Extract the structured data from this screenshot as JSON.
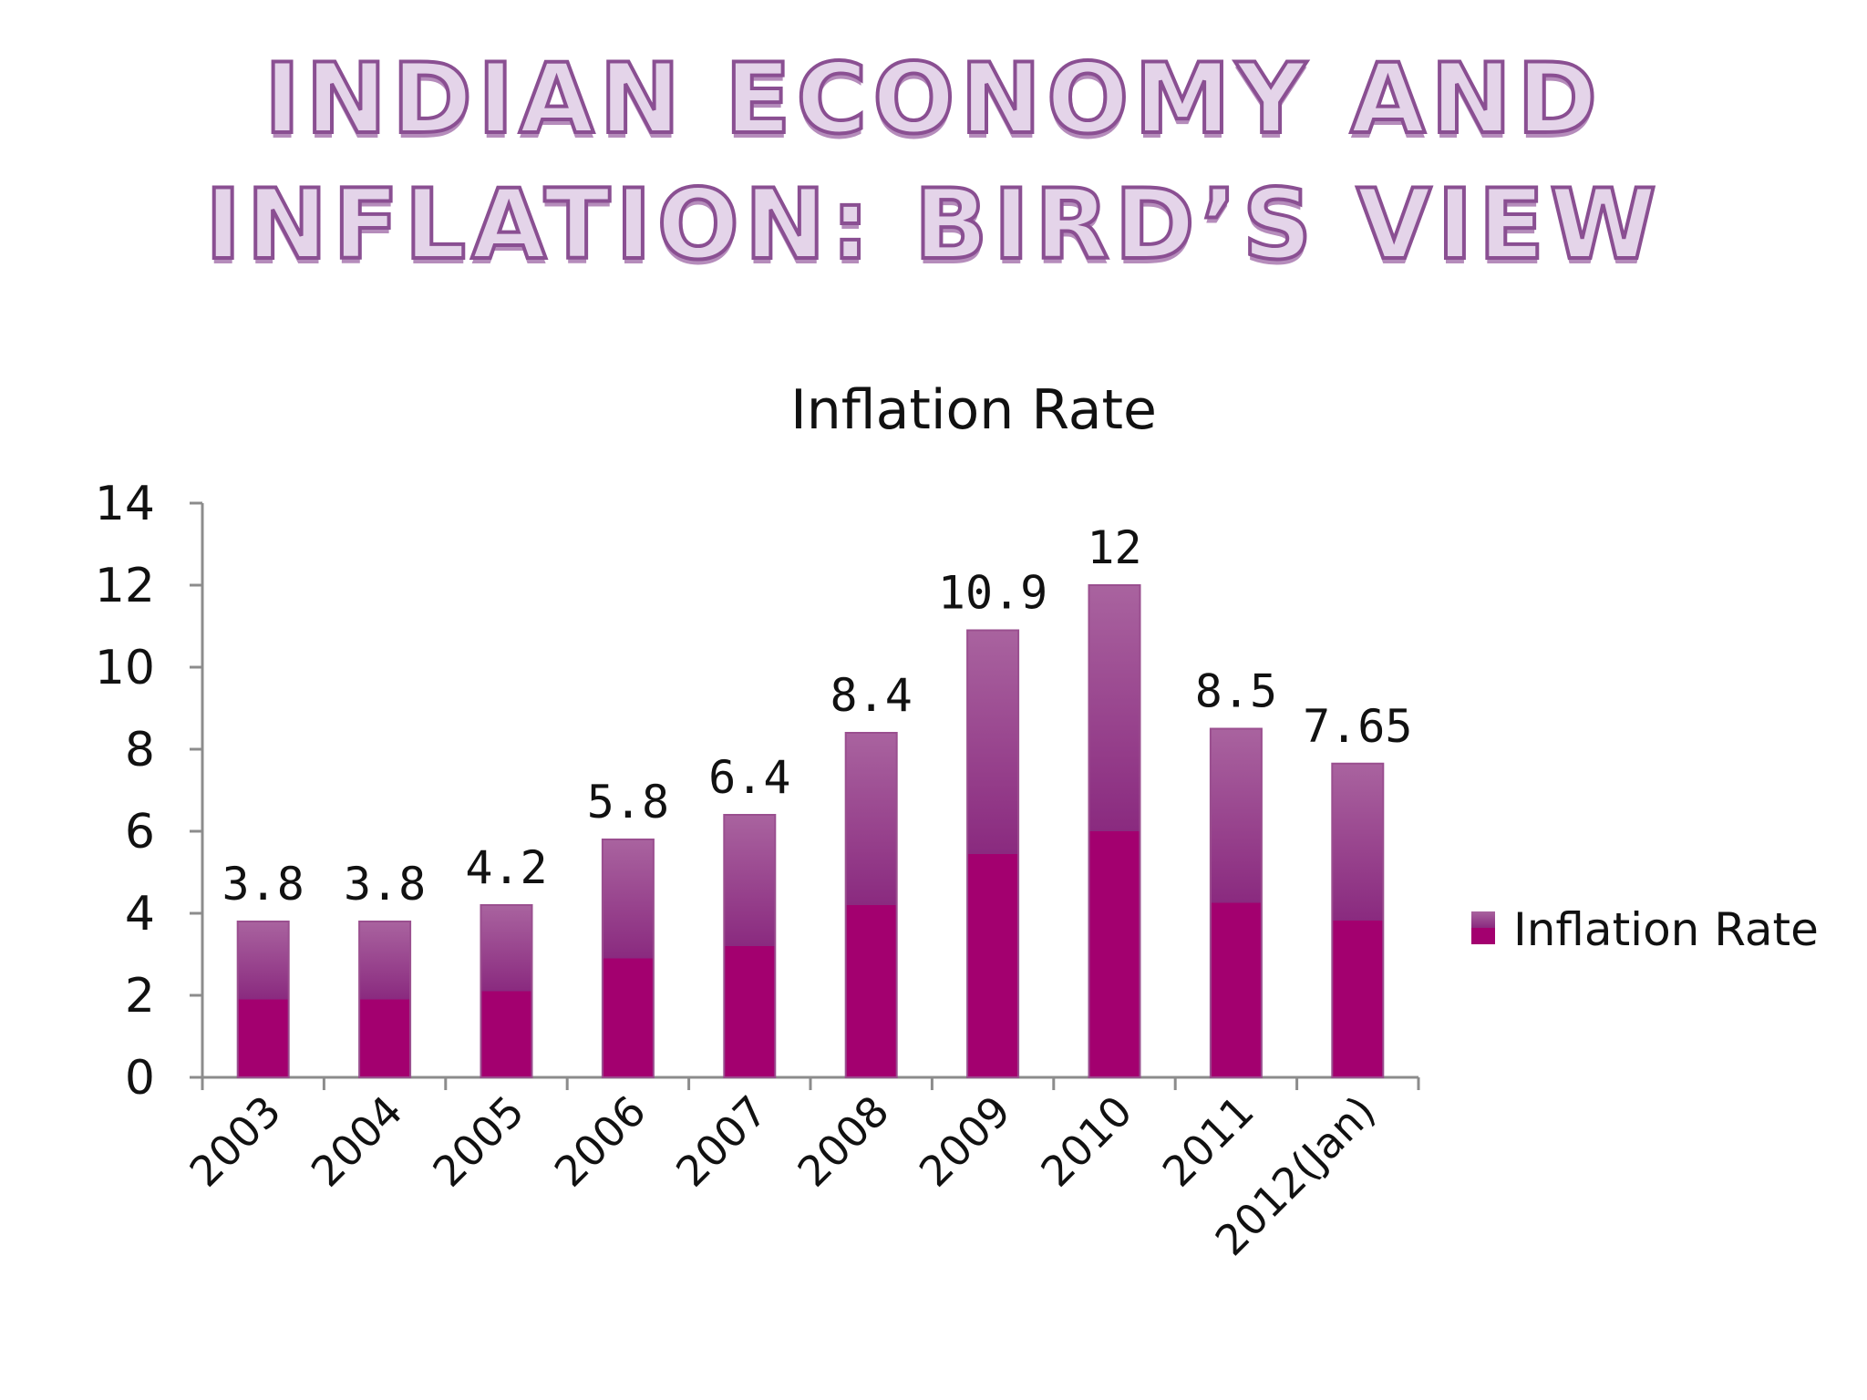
{
  "slide": {
    "title_line_1": "INDIAN ECONOMY AND",
    "title_line_2": "INFLATION: BIRD’S VIEW"
  },
  "colors": {
    "bar_top": "#a9639f",
    "bar_bottom": "#a3006f",
    "bar_edge": "#9a4f8f",
    "axis": "#8c8c8c",
    "title_fill": "#e4d4e9",
    "title_stroke": "#8a4f92"
  },
  "chart_data": {
    "type": "bar",
    "title": "Inflation Rate",
    "xlabel": "",
    "ylabel": "",
    "categories": [
      "2003",
      "2004",
      "2005",
      "2006",
      "2007",
      "2008",
      "2009",
      "2010",
      "2011",
      "2012(Jan)"
    ],
    "series": [
      {
        "name": "Inflation Rate",
        "values": [
          3.8,
          3.8,
          4.2,
          5.8,
          6.4,
          8.4,
          10.9,
          12,
          8.5,
          7.65
        ]
      }
    ],
    "data_labels": [
      "3.8",
      "3.8",
      "4.2",
      "5.8",
      "6.4",
      "8.4",
      "10.9",
      "12",
      "8.5",
      "7.65"
    ],
    "ylim": [
      0,
      14
    ],
    "yticks": [
      0,
      2,
      4,
      6,
      8,
      10,
      12,
      14
    ],
    "grid": false,
    "legend": "right"
  }
}
